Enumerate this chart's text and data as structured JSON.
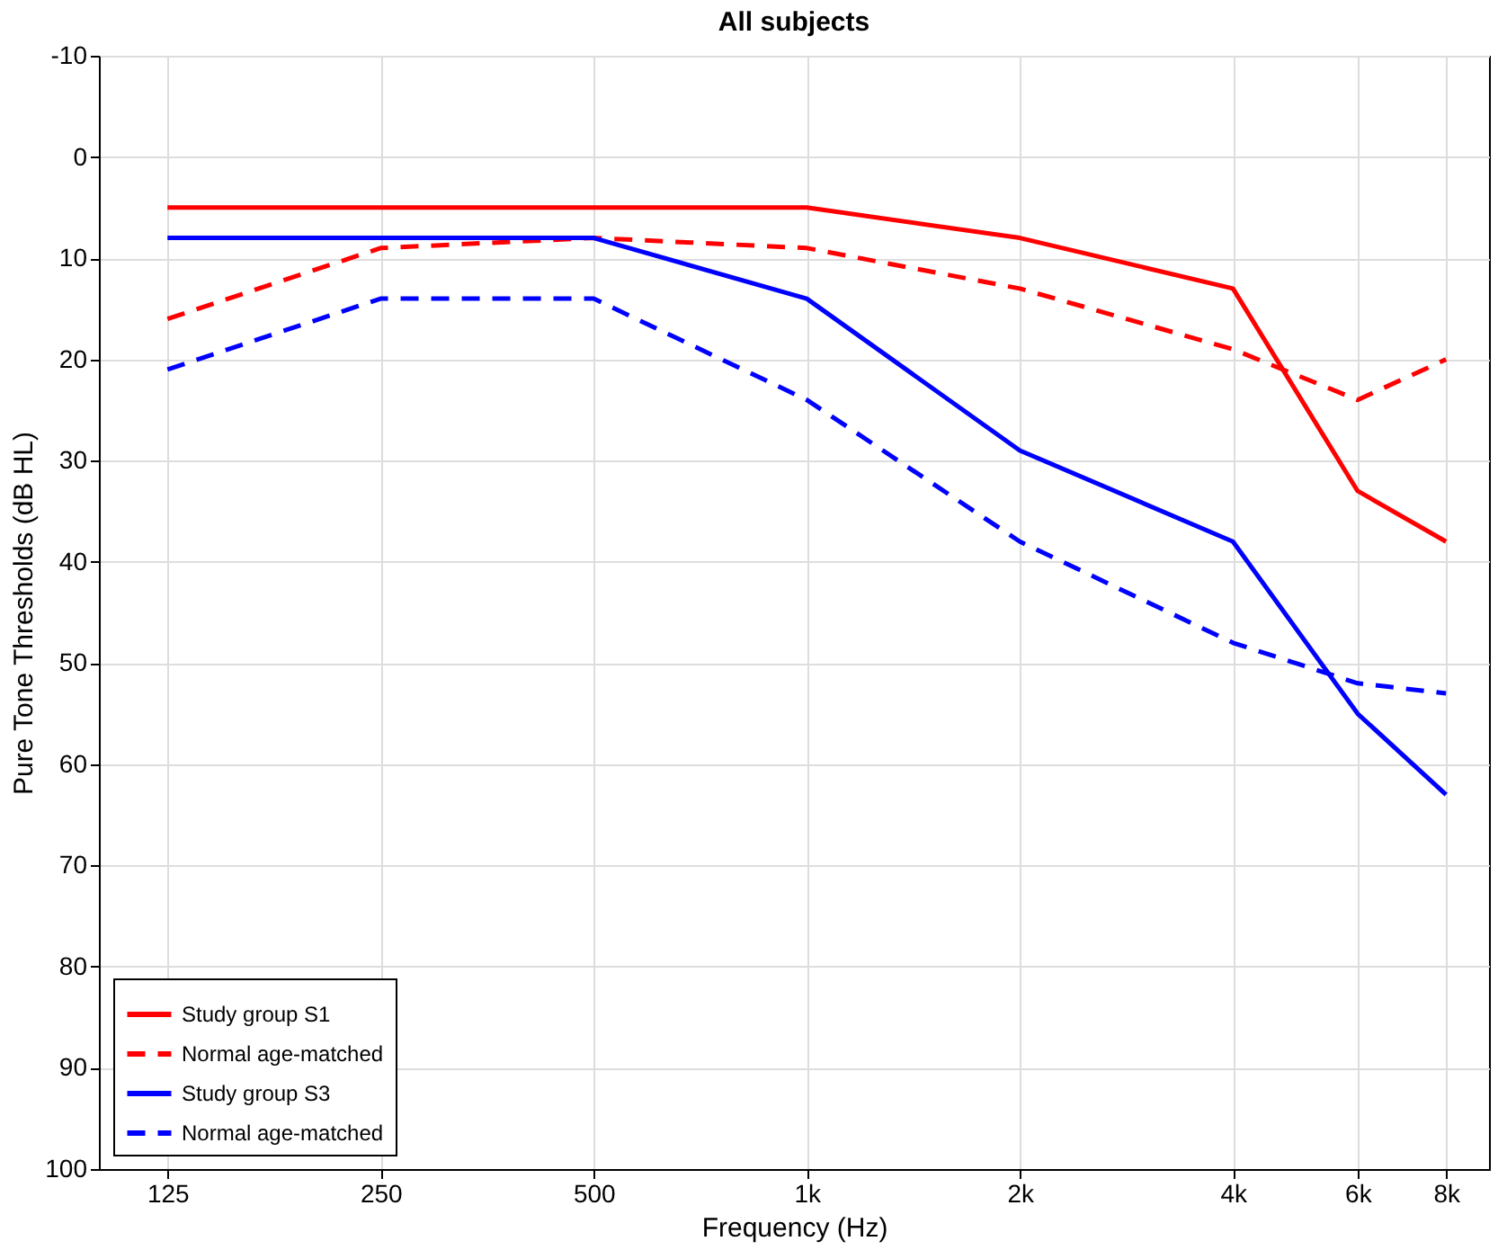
{
  "chart_data": {
    "type": "line",
    "title": "All subjects",
    "xlabel": "Frequency (Hz)",
    "ylabel": "Pure Tone Thresholds (dB HL)",
    "x": [
      125,
      250,
      500,
      1000,
      2000,
      4000,
      6000,
      8000
    ],
    "log": "x",
    "xlim": [
      100,
      9200
    ],
    "xticks": [
      125,
      250,
      500,
      {
        "value": 1000,
        "label": "1k"
      },
      {
        "value": 2000,
        "label": "2k"
      },
      {
        "value": 4000,
        "label": "4k"
      },
      {
        "value": 6000,
        "label": "6k"
      },
      {
        "value": 8000,
        "label": "8k"
      }
    ],
    "ylim": [
      100,
      -10
    ],
    "yticks": [
      -10,
      0,
      10,
      20,
      30,
      40,
      50,
      60,
      70,
      80,
      90,
      100
    ],
    "grid": true,
    "legend": "bottom left",
    "marker": "none",
    "series": [
      {
        "name": "Study group S1",
        "color": "#ff0000",
        "line_style": "solid",
        "values": [
          5,
          5,
          5,
          5,
          8,
          13,
          33,
          38
        ]
      },
      {
        "name": "Normal age-matched",
        "color": "#ff0000",
        "line_style": "dashed",
        "values": [
          16,
          9,
          8,
          9,
          13,
          19,
          24,
          20
        ]
      },
      {
        "name": "Study group S3",
        "color": "#0000ff",
        "line_style": "solid",
        "values": [
          8,
          8,
          8,
          14,
          29,
          38,
          55,
          63
        ]
      },
      {
        "name": "Normal age-matched",
        "color": "#0000ff",
        "line_style": "dashed",
        "values": [
          21,
          14,
          14,
          24,
          38,
          48,
          52,
          53
        ]
      }
    ]
  }
}
